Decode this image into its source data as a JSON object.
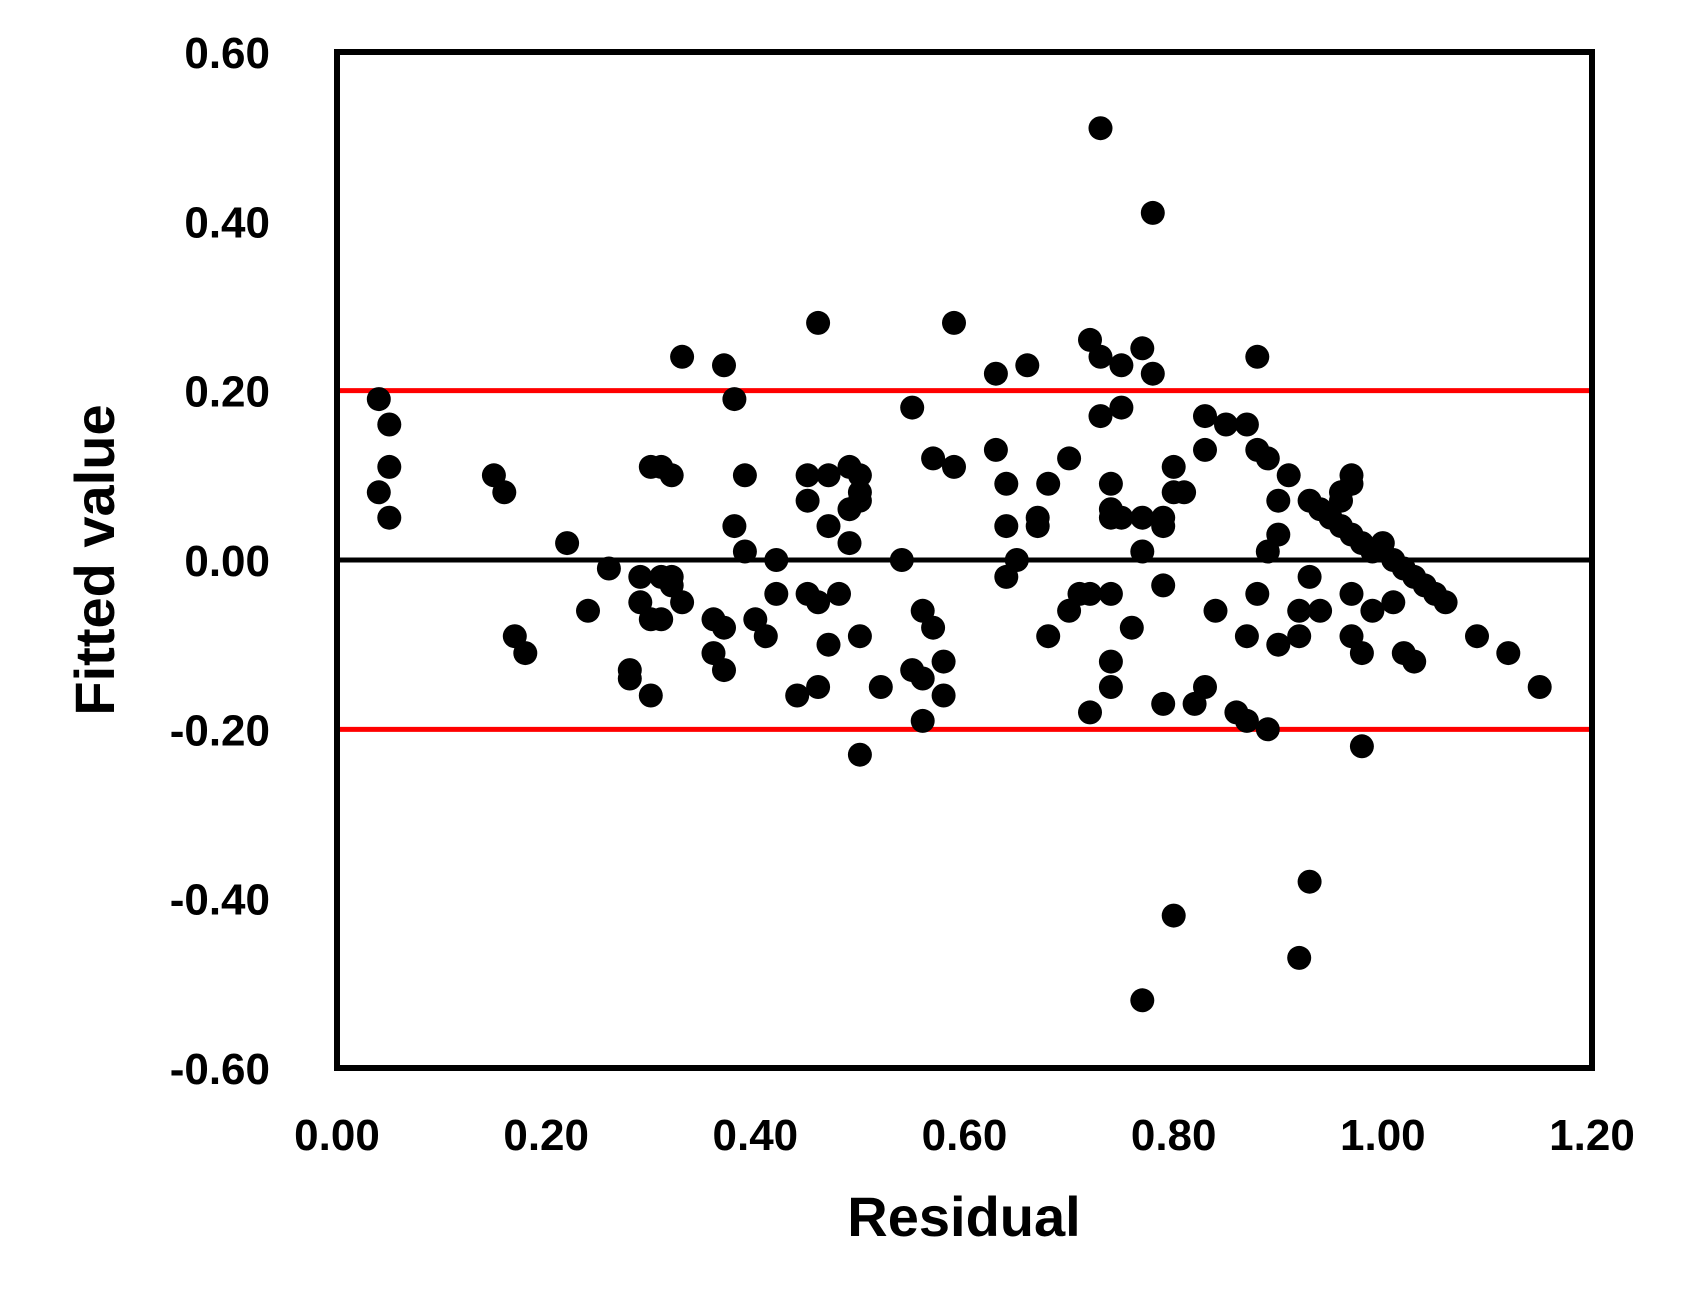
{
  "chart_data": {
    "type": "scatter",
    "xlabel": "Residual",
    "ylabel": "Fitted value",
    "xlim": [
      0,
      1.2
    ],
    "ylim": [
      -0.6,
      0.6
    ],
    "xticks": [
      "0.00",
      "0.20",
      "0.40",
      "0.60",
      "0.80",
      "1.00",
      "1.20"
    ],
    "yticks": [
      "0.60",
      "0.40",
      "0.20",
      "0.00",
      "-0.20",
      "-0.40",
      "-0.60"
    ],
    "grid": false,
    "reference_lines": [
      {
        "y": 0.2,
        "color": "#ff0000"
      },
      {
        "y": 0.0,
        "color": "#000000"
      },
      {
        "y": -0.2,
        "color": "#ff0000"
      }
    ],
    "marker_color": "#000000",
    "points": [
      [
        0.04,
        0.19
      ],
      [
        0.04,
        0.08
      ],
      [
        0.05,
        0.16
      ],
      [
        0.05,
        0.11
      ],
      [
        0.05,
        0.05
      ],
      [
        0.15,
        0.1
      ],
      [
        0.16,
        0.08
      ],
      [
        0.17,
        -0.09
      ],
      [
        0.18,
        -0.11
      ],
      [
        0.22,
        0.02
      ],
      [
        0.24,
        -0.06
      ],
      [
        0.26,
        -0.01
      ],
      [
        0.28,
        -0.14
      ],
      [
        0.28,
        -0.13
      ],
      [
        0.29,
        -0.05
      ],
      [
        0.29,
        -0.02
      ],
      [
        0.3,
        -0.16
      ],
      [
        0.3,
        -0.07
      ],
      [
        0.3,
        0.11
      ],
      [
        0.31,
        -0.07
      ],
      [
        0.31,
        -0.02
      ],
      [
        0.31,
        0.11
      ],
      [
        0.32,
        -0.03
      ],
      [
        0.32,
        0.1
      ],
      [
        0.32,
        -0.02
      ],
      [
        0.33,
        -0.05
      ],
      [
        0.33,
        0.24
      ],
      [
        0.36,
        -0.07
      ],
      [
        0.36,
        -0.11
      ],
      [
        0.37,
        0.23
      ],
      [
        0.37,
        -0.13
      ],
      [
        0.37,
        -0.08
      ],
      [
        0.38,
        0.19
      ],
      [
        0.38,
        0.04
      ],
      [
        0.39,
        0.01
      ],
      [
        0.39,
        0.1
      ],
      [
        0.4,
        -0.07
      ],
      [
        0.41,
        -0.09
      ],
      [
        0.42,
        0.0
      ],
      [
        0.42,
        -0.04
      ],
      [
        0.44,
        -0.16
      ],
      [
        0.45,
        0.1
      ],
      [
        0.45,
        -0.04
      ],
      [
        0.45,
        0.07
      ],
      [
        0.46,
        -0.05
      ],
      [
        0.46,
        0.28
      ],
      [
        0.46,
        -0.15
      ],
      [
        0.47,
        0.04
      ],
      [
        0.47,
        0.1
      ],
      [
        0.47,
        -0.1
      ],
      [
        0.48,
        -0.04
      ],
      [
        0.49,
        0.06
      ],
      [
        0.49,
        0.11
      ],
      [
        0.49,
        0.02
      ],
      [
        0.5,
        0.08
      ],
      [
        0.5,
        0.1
      ],
      [
        0.5,
        0.07
      ],
      [
        0.5,
        -0.09
      ],
      [
        0.5,
        -0.23
      ],
      [
        0.52,
        -0.15
      ],
      [
        0.54,
        0.0
      ],
      [
        0.55,
        0.18
      ],
      [
        0.55,
        -0.13
      ],
      [
        0.56,
        -0.06
      ],
      [
        0.56,
        -0.19
      ],
      [
        0.56,
        -0.14
      ],
      [
        0.57,
        -0.08
      ],
      [
        0.57,
        0.12
      ],
      [
        0.58,
        -0.12
      ],
      [
        0.58,
        -0.16
      ],
      [
        0.59,
        0.11
      ],
      [
        0.59,
        0.28
      ],
      [
        0.63,
        0.22
      ],
      [
        0.63,
        0.13
      ],
      [
        0.64,
        0.04
      ],
      [
        0.64,
        0.09
      ],
      [
        0.64,
        -0.02
      ],
      [
        0.65,
        0.0
      ],
      [
        0.66,
        0.23
      ],
      [
        0.67,
        0.05
      ],
      [
        0.67,
        0.04
      ],
      [
        0.68,
        0.09
      ],
      [
        0.68,
        -0.09
      ],
      [
        0.7,
        -0.06
      ],
      [
        0.7,
        0.12
      ],
      [
        0.71,
        -0.04
      ],
      [
        0.72,
        0.26
      ],
      [
        0.72,
        -0.18
      ],
      [
        0.72,
        -0.04
      ],
      [
        0.73,
        0.24
      ],
      [
        0.73,
        0.17
      ],
      [
        0.73,
        0.51
      ],
      [
        0.74,
        0.09
      ],
      [
        0.74,
        0.06
      ],
      [
        0.74,
        0.05
      ],
      [
        0.74,
        -0.04
      ],
      [
        0.74,
        -0.12
      ],
      [
        0.74,
        -0.15
      ],
      [
        0.75,
        0.23
      ],
      [
        0.75,
        0.05
      ],
      [
        0.75,
        0.18
      ],
      [
        0.76,
        -0.08
      ],
      [
        0.77,
        0.01
      ],
      [
        0.77,
        0.05
      ],
      [
        0.77,
        0.25
      ],
      [
        0.77,
        -0.52
      ],
      [
        0.78,
        0.22
      ],
      [
        0.78,
        0.41
      ],
      [
        0.79,
        0.05
      ],
      [
        0.79,
        -0.03
      ],
      [
        0.79,
        -0.17
      ],
      [
        0.79,
        0.04
      ],
      [
        0.8,
        0.08
      ],
      [
        0.8,
        0.11
      ],
      [
        0.8,
        -0.42
      ],
      [
        0.81,
        0.08
      ],
      [
        0.82,
        -0.17
      ],
      [
        0.83,
        0.13
      ],
      [
        0.83,
        0.17
      ],
      [
        0.83,
        -0.15
      ],
      [
        0.84,
        -0.06
      ],
      [
        0.85,
        0.16
      ],
      [
        0.86,
        -0.18
      ],
      [
        0.87,
        -0.09
      ],
      [
        0.87,
        -0.19
      ],
      [
        0.87,
        0.16
      ],
      [
        0.88,
        0.13
      ],
      [
        0.88,
        -0.04
      ],
      [
        0.88,
        0.24
      ],
      [
        0.89,
        0.12
      ],
      [
        0.89,
        0.01
      ],
      [
        0.89,
        -0.2
      ],
      [
        0.9,
        0.03
      ],
      [
        0.9,
        0.07
      ],
      [
        0.9,
        -0.1
      ],
      [
        0.91,
        0.1
      ],
      [
        0.92,
        -0.09
      ],
      [
        0.92,
        -0.06
      ],
      [
        0.92,
        -0.47
      ],
      [
        0.93,
        -0.02
      ],
      [
        0.93,
        -0.38
      ],
      [
        0.93,
        0.07
      ],
      [
        0.94,
        0.06
      ],
      [
        0.94,
        -0.06
      ],
      [
        0.95,
        0.05
      ],
      [
        0.96,
        0.04
      ],
      [
        0.96,
        0.08
      ],
      [
        0.96,
        0.07
      ],
      [
        0.97,
        0.1
      ],
      [
        0.97,
        0.09
      ],
      [
        0.97,
        0.03
      ],
      [
        0.97,
        -0.04
      ],
      [
        0.97,
        -0.09
      ],
      [
        0.98,
        0.02
      ],
      [
        0.98,
        -0.11
      ],
      [
        0.98,
        -0.22
      ],
      [
        0.99,
        0.01
      ],
      [
        0.99,
        -0.06
      ],
      [
        1.0,
        0.02
      ],
      [
        1.01,
        0.0
      ],
      [
        1.01,
        -0.05
      ],
      [
        1.02,
        -0.01
      ],
      [
        1.02,
        -0.11
      ],
      [
        1.03,
        -0.02
      ],
      [
        1.03,
        -0.12
      ],
      [
        1.04,
        -0.03
      ],
      [
        1.05,
        -0.04
      ],
      [
        1.06,
        -0.05
      ],
      [
        1.09,
        -0.09
      ],
      [
        1.12,
        -0.11
      ],
      [
        1.15,
        -0.15
      ]
    ]
  }
}
